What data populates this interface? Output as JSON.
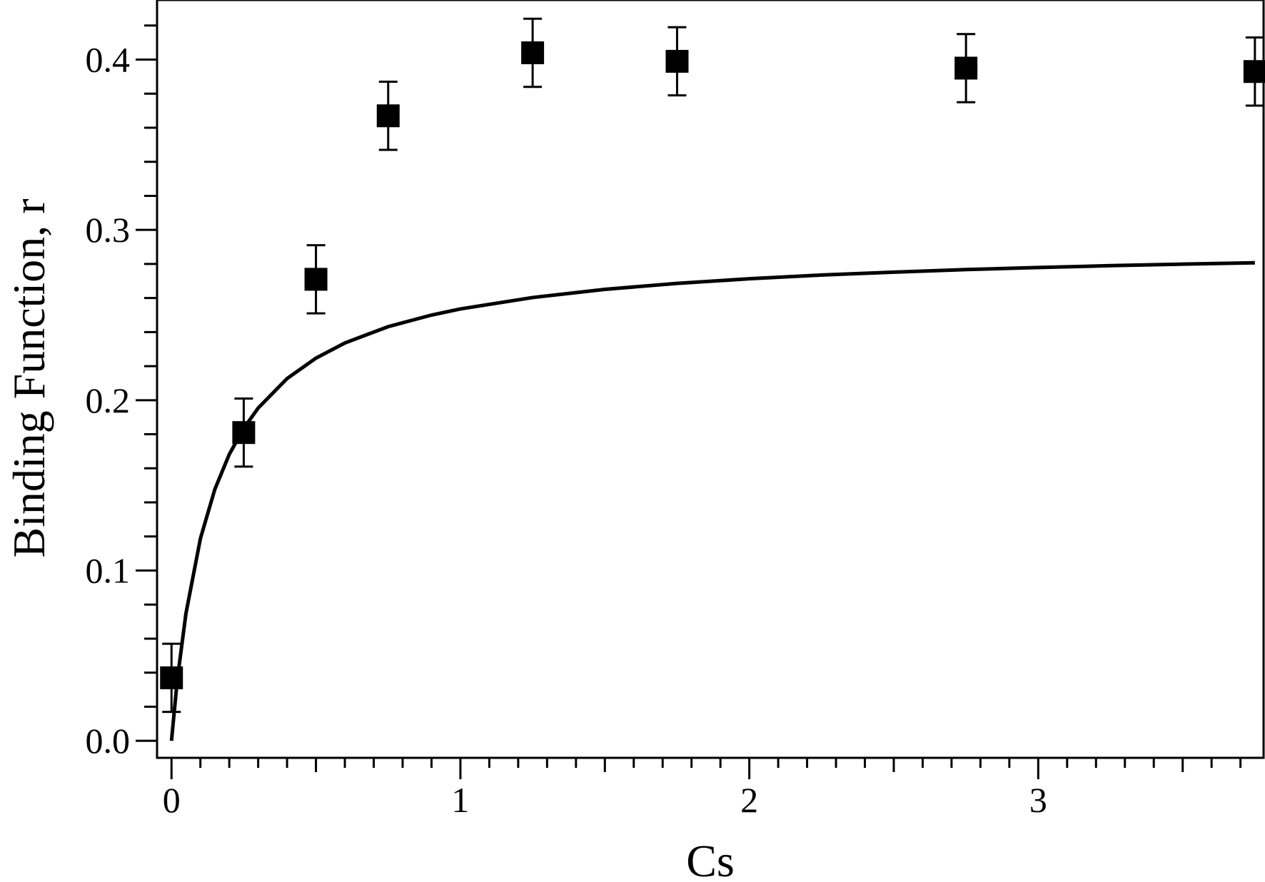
{
  "chart_data": {
    "type": "scatter",
    "title": "",
    "xlabel": "Cs",
    "ylabel": "Binding Function, r",
    "xlim": [
      -0.05,
      3.78
    ],
    "ylim": [
      -0.01,
      0.435
    ],
    "x_ticks": [
      0,
      1,
      2,
      3
    ],
    "x_tick_labels": [
      "0",
      "1",
      "2",
      "3"
    ],
    "x_minor_step": 0.1,
    "y_ticks": [
      0.0,
      0.1,
      0.2,
      0.3,
      0.4
    ],
    "y_tick_labels": [
      "0.0",
      "0.1",
      "0.2",
      "0.3",
      "0.4"
    ],
    "y_minor_step": 0.02,
    "grid": false,
    "legend": "none",
    "series": [
      {
        "type": "scatter",
        "marker": "square",
        "color": "#000000",
        "points": [
          {
            "x": 0.0,
            "y": 0.037,
            "err": 0.02
          },
          {
            "x": 0.25,
            "y": 0.181,
            "err": 0.02
          },
          {
            "x": 0.5,
            "y": 0.271,
            "err": 0.02
          },
          {
            "x": 0.75,
            "y": 0.367,
            "err": 0.02
          },
          {
            "x": 1.25,
            "y": 0.404,
            "err": 0.02
          },
          {
            "x": 1.75,
            "y": 0.399,
            "err": 0.02
          },
          {
            "x": 2.75,
            "y": 0.395,
            "err": 0.02
          },
          {
            "x": 3.75,
            "y": 0.393,
            "err": 0.02
          }
        ]
      },
      {
        "type": "line",
        "color": "#000000",
        "x": [
          0.0,
          0.02,
          0.05,
          0.1,
          0.15,
          0.2,
          0.25,
          0.3,
          0.4,
          0.5,
          0.6,
          0.75,
          0.9,
          1.0,
          1.25,
          1.5,
          1.75,
          2.0,
          2.25,
          2.5,
          2.75,
          3.0,
          3.25,
          3.5,
          3.75
        ],
        "y": [
          0.0,
          0.0358,
          0.0748,
          0.1187,
          0.1477,
          0.1682,
          0.1835,
          0.1954,
          0.2127,
          0.2247,
          0.2336,
          0.2432,
          0.25,
          0.2536,
          0.2603,
          0.2651,
          0.2686,
          0.2713,
          0.2735,
          0.2752,
          0.2767,
          0.2779,
          0.279,
          0.2799,
          0.2807
        ]
      }
    ]
  }
}
